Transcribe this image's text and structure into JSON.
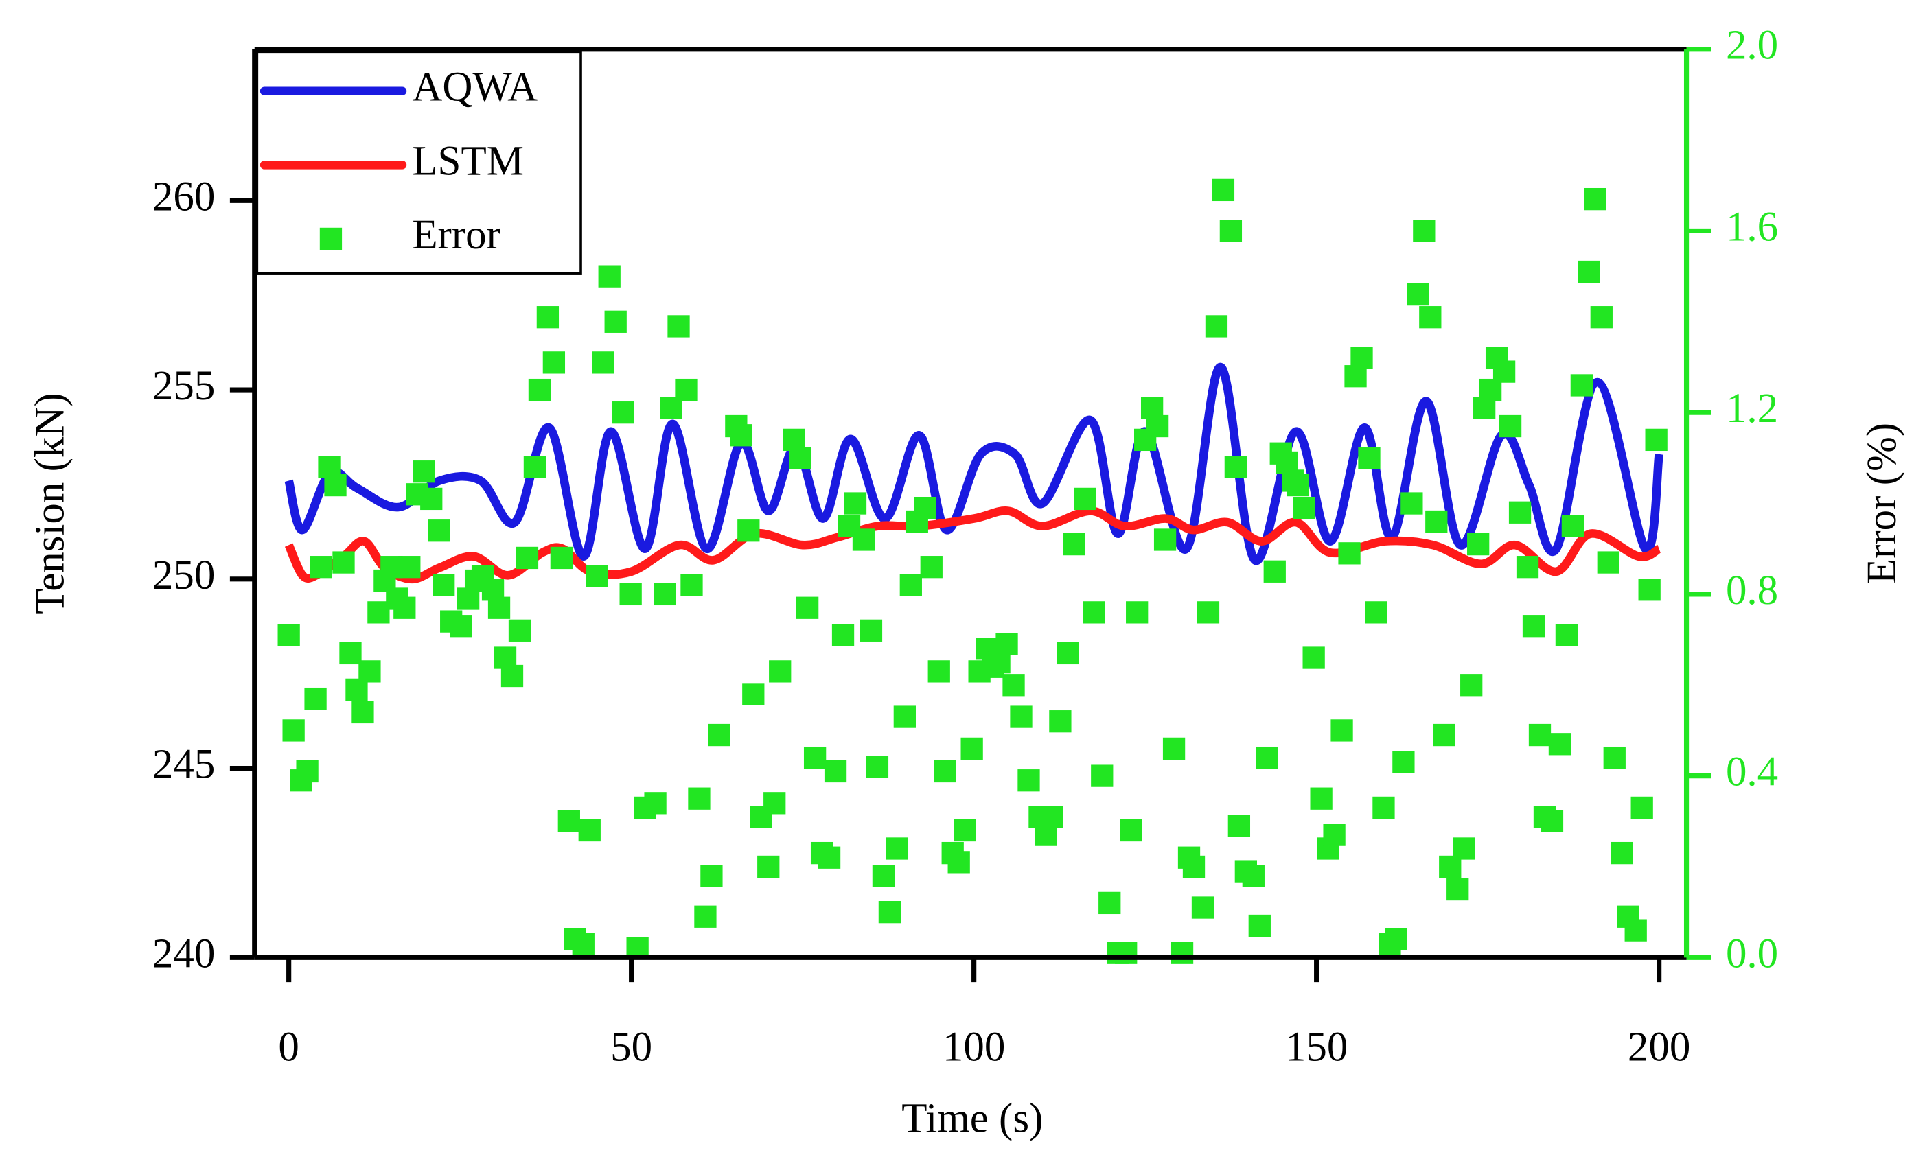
{
  "chart_data": {
    "type": "line",
    "xlabel": "Time (s)",
    "ylabel": "Tension (kN)",
    "y2label": "Error (%)",
    "xlim": [
      -5,
      204
    ],
    "xticks": [
      0,
      50,
      100,
      150,
      200
    ],
    "ylim": [
      240,
      264
    ],
    "yticks": [
      240,
      245,
      250,
      255,
      260
    ],
    "y2lim": [
      0,
      2
    ],
    "y2ticks": [
      {
        "value": 0,
        "label": "0.0"
      },
      0.4,
      0.8,
      1.2,
      1.6,
      {
        "value": 2,
        "label": "2.0"
      }
    ],
    "y2color": "#22e622",
    "legend": "upper left",
    "series": [
      {
        "name": "AQWA",
        "color": "#1a1ae0",
        "x": [
          0,
          2,
          6,
          10,
          16,
          22,
          28,
          33,
          38,
          43,
          47,
          52,
          56,
          61,
          66,
          70,
          74,
          78,
          82,
          87,
          92,
          96,
          101,
          106,
          110,
          117,
          121,
          125,
          131,
          136,
          141,
          147,
          152,
          157,
          161,
          166,
          171,
          177,
          181,
          185,
          191,
          198,
          200
        ],
        "values": [
          252.6,
          251.3,
          252.8,
          252.4,
          251.9,
          252.6,
          252.6,
          251.5,
          254.0,
          250.6,
          253.9,
          250.8,
          254.1,
          250.8,
          253.6,
          251.8,
          253.5,
          251.6,
          253.7,
          251.6,
          253.8,
          251.3,
          253.3,
          253.3,
          252.0,
          254.2,
          251.2,
          253.9,
          250.8,
          255.6,
          250.5,
          253.9,
          251.0,
          254.0,
          251.1,
          254.7,
          250.9,
          253.8,
          252.5,
          250.8,
          255.2,
          250.8,
          253.3
        ]
      },
      {
        "name": "LSTM",
        "color": "#ff1a1a",
        "x": [
          0,
          2,
          4,
          8,
          11,
          14,
          18,
          22,
          27,
          32,
          37,
          40,
          44,
          50,
          57,
          62,
          68,
          75,
          80,
          86,
          92,
          100,
          105,
          110,
          117,
          122,
          128,
          132,
          137,
          142,
          147,
          152,
          160,
          167,
          174,
          179,
          185,
          190,
          197,
          200
        ],
        "values": [
          250.9,
          250.1,
          250.1,
          250.6,
          251.0,
          250.3,
          250.0,
          250.3,
          250.6,
          250.1,
          250.7,
          250.8,
          250.2,
          250.2,
          250.9,
          250.5,
          251.2,
          250.9,
          251.1,
          251.4,
          251.4,
          251.6,
          251.8,
          251.4,
          251.8,
          251.4,
          251.6,
          251.3,
          251.5,
          251.0,
          251.5,
          250.7,
          251.0,
          250.9,
          250.4,
          250.9,
          250.2,
          251.2,
          250.6,
          250.8
        ]
      },
      {
        "name": "Error",
        "color": "#22e622",
        "type": "scatter",
        "axis": "y2",
        "x": [
          0,
          0.7,
          1.8,
          2.7,
          3.9,
          4.7,
          5.9,
          6.8,
          8,
          9,
          9.9,
          10.8,
          11.8,
          13.1,
          14,
          15,
          15.8,
          16.9,
          17.6,
          18.7,
          19.7,
          20.8,
          21.9,
          22.6,
          23.7,
          25.1,
          26.2,
          27.3,
          28.3,
          29.8,
          30.7,
          31.6,
          32.6,
          33.7,
          34.8,
          35.9,
          36.6,
          37.8,
          38.7,
          39.8,
          40.9,
          41.8,
          43,
          43.9,
          45,
          45.9,
          46.8,
          47.7,
          48.8,
          49.9,
          50.9,
          52,
          53.5,
          54.9,
          55.8,
          56.9,
          58,
          58.8,
          59.9,
          60.8,
          61.7,
          62.8,
          65.3,
          66,
          67.1,
          67.8,
          68.9,
          70,
          70.9,
          71.7,
          73.7,
          74.6,
          75.7,
          76.8,
          77.8,
          78.9,
          79.8,
          80.9,
          81.8,
          82.7,
          83.9,
          85,
          85.9,
          86.8,
          87.7,
          88.8,
          89.9,
          90.8,
          91.7,
          92.9,
          93.8,
          94.9,
          95.8,
          96.9,
          97.8,
          98.7,
          99.7,
          100.8,
          101.9,
          102.8,
          103.7,
          104.8,
          105.8,
          106.9,
          108,
          109.6,
          110.5,
          111.4,
          112.6,
          113.7,
          114.6,
          116.2,
          117.5,
          118.7,
          119.8,
          121,
          122.2,
          122.9,
          123.8,
          125,
          126,
          126.8,
          127.9,
          129.2,
          130.4,
          131.4,
          132.1,
          133.4,
          134.2,
          135.4,
          136.4,
          137.5,
          138.2,
          138.7,
          139.7,
          140.8,
          141.7,
          142.8,
          143.9,
          144.8,
          145.7,
          146.6,
          147.3,
          148.2,
          149.6,
          150.7,
          151.7,
          152.6,
          153.7,
          154.8,
          155.7,
          156.6,
          157.7,
          158.7,
          159.8,
          160.7,
          161.6,
          162.7,
          163.9,
          164.8,
          165.7,
          166.6,
          167.5,
          168.6,
          169.5,
          170.6,
          171.5,
          172.6,
          173.6,
          174.5,
          175.4,
          176.3,
          177.4,
          178.3,
          179.7,
          180.8,
          181.7,
          182.6,
          183.3,
          184.4,
          185.5,
          186.5,
          187.4,
          188.7,
          189.8,
          190.7,
          191.6,
          192.6,
          193.5,
          194.6,
          195.5,
          196.6,
          197.5,
          198.6,
          199.6
        ],
        "values": [
          0.71,
          0.5,
          0.39,
          0.41,
          0.57,
          0.86,
          1.08,
          1.04,
          0.87,
          0.67,
          0.59,
          0.54,
          0.63,
          0.76,
          0.83,
          0.86,
          0.79,
          0.77,
          0.86,
          1.02,
          1.07,
          1.01,
          0.94,
          0.82,
          0.74,
          0.73,
          0.79,
          0.83,
          0.84,
          0.81,
          0.77,
          0.66,
          0.62,
          0.72,
          0.88,
          1.08,
          1.25,
          1.41,
          1.31,
          0.88,
          0.3,
          0.04,
          0.03,
          0.28,
          0.84,
          1.31,
          1.5,
          1.4,
          1.2,
          0.8,
          0.02,
          0.33,
          0.34,
          0.8,
          1.21,
          1.39,
          1.25,
          0.82,
          0.35,
          0.09,
          0.18,
          0.49,
          1.17,
          1.15,
          0.94,
          0.58,
          0.31,
          0.2,
          0.34,
          0.63,
          1.14,
          1.1,
          0.77,
          0.44,
          0.23,
          0.22,
          0.41,
          0.71,
          0.95,
          1.0,
          0.92,
          0.72,
          0.42,
          0.18,
          0.1,
          0.24,
          0.53,
          0.82,
          0.96,
          0.99,
          0.86,
          0.63,
          0.41,
          0.23,
          0.21,
          0.28,
          0.46,
          0.63,
          0.68,
          0.64,
          0.65,
          0.69,
          0.6,
          0.53,
          0.39,
          0.31,
          0.27,
          0.31,
          0.52,
          0.67,
          0.91,
          1.01,
          0.76,
          0.4,
          0.12,
          0.01,
          0.01,
          0.28,
          0.76,
          1.14,
          1.21,
          1.17,
          0.92,
          0.46,
          0.01,
          0.22,
          0.2,
          0.11,
          0.76,
          1.39,
          1.69,
          1.6,
          1.08,
          0.29,
          0.19,
          0.18,
          0.07,
          0.44,
          0.85,
          1.11,
          1.09,
          1.05,
          1.04,
          0.99,
          0.66,
          0.35,
          0.24,
          0.27,
          0.5,
          0.89,
          1.28,
          1.32,
          1.1,
          0.76,
          0.33,
          0.03,
          0.04,
          0.43,
          1.0,
          1.46,
          1.6,
          1.41,
          0.96,
          0.49,
          0.2,
          0.15,
          0.24,
          0.6,
          0.91,
          1.21,
          1.25,
          1.32,
          1.29,
          1.17,
          0.98,
          0.86,
          0.73,
          0.49,
          0.31,
          0.3,
          0.47,
          0.71,
          0.95,
          1.26,
          1.51,
          1.67,
          1.41,
          0.87,
          0.44,
          0.23,
          0.09,
          0.06,
          0.33,
          0.81,
          1.14
        ]
      }
    ]
  }
}
